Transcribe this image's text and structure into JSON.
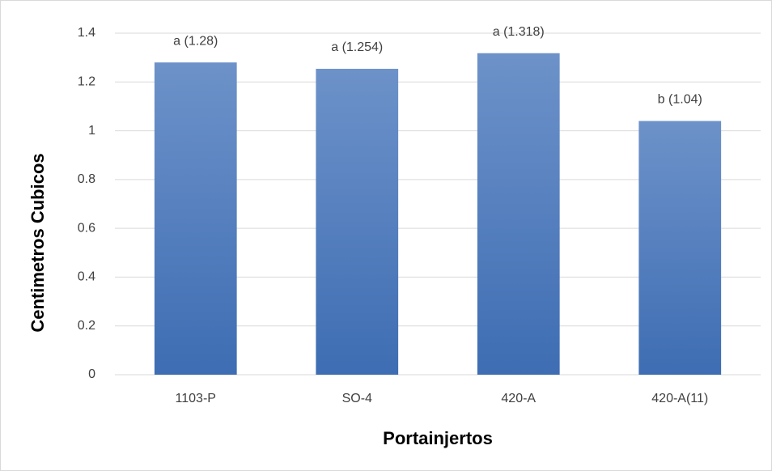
{
  "chart_data": {
    "type": "bar",
    "categories": [
      "1103-P",
      "SO-4",
      "420-A",
      "420-A(11)"
    ],
    "values": [
      1.28,
      1.254,
      1.318,
      1.04
    ],
    "value_labels": [
      "a (1.28)",
      "a (1.254)",
      "a (1.318)",
      "b (1.04)"
    ],
    "color": "#4a7cc0",
    "ylim": [
      0,
      1.4
    ],
    "yticks": [
      0,
      0.2,
      0.4,
      0.6,
      0.8,
      1,
      1.2,
      1.4
    ],
    "grid": true,
    "x_label": "Portainjertos",
    "y_label": "Centimetros Cubicos"
  }
}
